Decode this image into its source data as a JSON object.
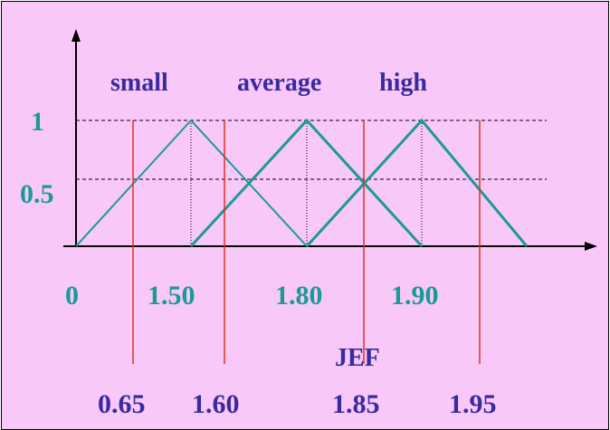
{
  "sets": [
    "small",
    "average",
    "high"
  ],
  "y_ticks": [
    "1",
    "0.5"
  ],
  "x_ticks": [
    "0",
    "1.50",
    "1.80",
    "1.90"
  ],
  "value_markers": [
    "0.65",
    "1.60",
    "1.85",
    "1.95"
  ],
  "axis_title": "JEF",
  "colors": {
    "background": "#f8c8f8",
    "membership_lines": "#1a9a96",
    "value_lines": "#e8301a",
    "label_blue": "#3a2aa0",
    "label_teal": "#1a9a96"
  }
}
